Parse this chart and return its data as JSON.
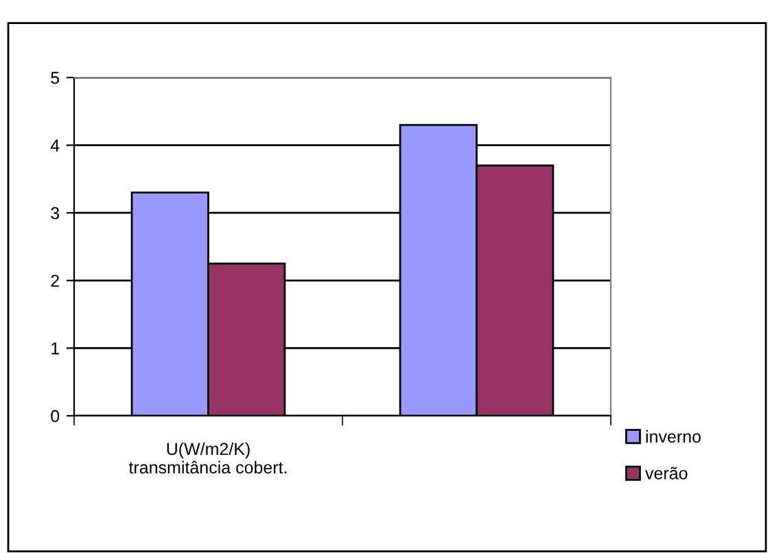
{
  "chart_data": {
    "type": "bar",
    "categories": [
      "U(W/m2/K)\ntransmitância cobert.",
      null
    ],
    "series": [
      {
        "name": "inverno",
        "color": "#9999ff",
        "values": [
          3.3,
          4.3
        ]
      },
      {
        "name": "verão",
        "color": "#993366",
        "values": [
          2.25,
          3.7
        ]
      }
    ],
    "ylim": [
      0,
      5
    ],
    "yticks": [
      0,
      1,
      2,
      3,
      4,
      5
    ],
    "grid": "y",
    "legend": "right"
  }
}
